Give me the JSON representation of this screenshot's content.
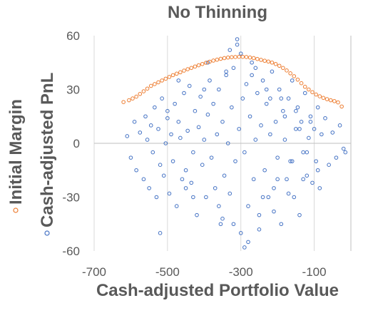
{
  "chart_data": {
    "type": "scatter",
    "title": "No Thinning",
    "xlabel": "Cash-adjusted Portfolio Value",
    "ylabels": [
      "Initial Margin",
      "Cash-adjusted PnL"
    ],
    "xlim": [
      -700,
      0
    ],
    "ylim": [
      -60,
      60
    ],
    "x_ticks": [
      -700,
      -500,
      -300,
      -100
    ],
    "x_tick_labels": [
      "-700",
      "-500",
      "-300",
      "-100"
    ],
    "y_ticks": [
      -60,
      -30,
      0,
      30,
      60
    ],
    "y_tick_labels": [
      "-60",
      "-30",
      "0",
      "30",
      "60"
    ],
    "grid": "vertical",
    "legend": "left",
    "series": [
      {
        "name": "Initial Margin",
        "color": "#ED7D31",
        "marker": "hollow-circle",
        "x": [
          -620,
          -605,
          -595,
          -585,
          -575,
          -565,
          -555,
          -545,
          -535,
          -525,
          -515,
          -505,
          -495,
          -485,
          -475,
          -465,
          -455,
          -445,
          -435,
          -425,
          -415,
          -405,
          -395,
          -385,
          -375,
          -365,
          -355,
          -345,
          -335,
          -325,
          -315,
          -305,
          -295,
          -285,
          -275,
          -265,
          -255,
          -245,
          -235,
          -225,
          -215,
          -205,
          -195,
          -185,
          -175,
          -165,
          -155,
          -145,
          -135,
          -125,
          -115,
          -105,
          -95,
          -85,
          -75,
          -65,
          -55,
          -45,
          -35,
          -25
        ],
        "y": [
          23,
          24,
          25,
          26,
          27.5,
          29,
          30.5,
          32,
          33,
          34,
          35,
          36,
          37,
          38,
          38.8,
          39.6,
          40.5,
          41.3,
          42,
          42.8,
          43.5,
          44.2,
          44.9,
          45.5,
          46.1,
          46.6,
          47.1,
          47.5,
          47.8,
          48,
          48.1,
          48.2,
          48.2,
          48.1,
          47.8,
          47.5,
          47,
          46.5,
          46,
          45.6,
          45,
          44.2,
          43.2,
          42,
          40.6,
          39,
          37.4,
          35.5,
          33.5,
          31.5,
          30,
          28.5,
          27.2,
          26.2,
          25.3,
          24.6,
          24,
          23.5,
          22.8,
          20.5
        ]
      },
      {
        "name": "Cash-adjusted PnL",
        "color": "#4472C4",
        "marker": "hollow-circle",
        "x": [
          -610,
          -600,
          -590,
          -585,
          -575,
          -565,
          -560,
          -555,
          -550,
          -545,
          -540,
          -535,
          -530,
          -525,
          -520,
          -515,
          -510,
          -505,
          -500,
          -495,
          -490,
          -485,
          -480,
          -475,
          -470,
          -465,
          -460,
          -455,
          -450,
          -445,
          -440,
          -435,
          -430,
          -425,
          -420,
          -415,
          -410,
          -405,
          -400,
          -395,
          -390,
          -385,
          -380,
          -375,
          -370,
          -365,
          -360,
          -355,
          -350,
          -345,
          -340,
          -335,
          -330,
          -325,
          -320,
          -315,
          -310,
          -305,
          -300,
          -295,
          -290,
          -285,
          -280,
          -275,
          -270,
          -265,
          -260,
          -255,
          -250,
          -245,
          -240,
          -235,
          -230,
          -225,
          -220,
          -215,
          -210,
          -205,
          -200,
          -195,
          -190,
          -185,
          -180,
          -175,
          -170,
          -165,
          -160,
          -155,
          -150,
          -145,
          -140,
          -135,
          -130,
          -125,
          -120,
          -115,
          -110,
          -105,
          -100,
          -95,
          -90,
          -85,
          -80,
          -70,
          -60,
          -50,
          -40,
          -30,
          -20,
          -15,
          -520,
          -470,
          -430,
          -390,
          -350,
          -330,
          -310,
          -290,
          -270,
          -250,
          -230,
          -210,
          -190,
          -170,
          -150,
          -130,
          -110,
          -90,
          -500,
          -450,
          -400,
          -360,
          -340,
          -320,
          -300,
          -280,
          -260,
          -240,
          -220,
          -200,
          -180,
          -160,
          -140,
          -120
        ],
        "y": [
          4,
          -8,
          12,
          -15,
          6,
          -20,
          15,
          2,
          -25,
          10,
          -5,
          20,
          -30,
          8,
          -12,
          25,
          -18,
          0,
          14,
          -28,
          5,
          -10,
          22,
          -35,
          12,
          3,
          -20,
          28,
          -15,
          7,
          32,
          -22,
          -5,
          18,
          -40,
          9,
          26,
          -12,
          2,
          -30,
          16,
          35,
          -8,
          22,
          -25,
          5,
          30,
          -45,
          12,
          -18,
          38,
          0,
          -28,
          20,
          42,
          -10,
          55,
          8,
          -50,
          25,
          -5,
          33,
          -35,
          15,
          45,
          -20,
          2,
          28,
          -40,
          10,
          35,
          -15,
          22,
          -30,
          5,
          40,
          -25,
          12,
          -8,
          30,
          -45,
          18,
          2,
          -20,
          25,
          -10,
          35,
          -30,
          8,
          20,
          -40,
          12,
          -5,
          28,
          -18,
          3,
          15,
          -22,
          8,
          -10,
          20,
          -25,
          5,
          14,
          -12,
          6,
          -8,
          10,
          -3,
          -5,
          -50,
          35,
          -30,
          45,
          -42,
          52,
          58,
          -58,
          38,
          -48,
          30,
          -38,
          25,
          -28,
          18,
          -20,
          12,
          -15,
          18,
          -25,
          30,
          -35,
          40,
          -45,
          50,
          -55,
          42,
          -30,
          25,
          -20,
          15,
          -10,
          8,
          -5
        ]
      }
    ]
  }
}
